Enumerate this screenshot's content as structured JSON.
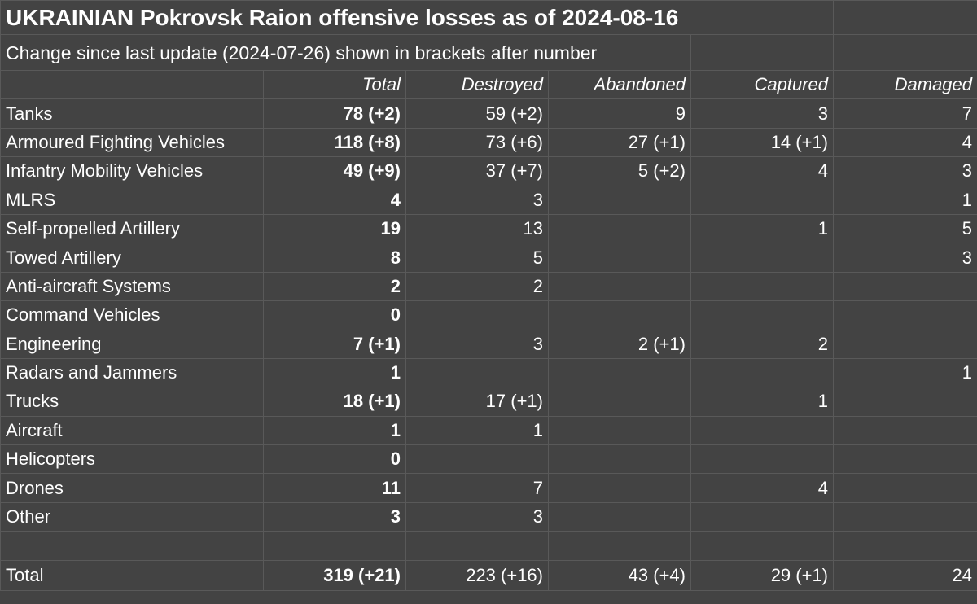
{
  "title": "UKRAINIAN Pokrovsk Raion offensive losses as of 2024-08-16",
  "subtitle": "Change since last update (2024-07-26) shown in brackets after number",
  "columns": [
    "Total",
    "Destroyed",
    "Abandoned",
    "Captured",
    "Damaged"
  ],
  "rows": [
    {
      "label": "Tanks",
      "total": "78 (+2)",
      "destroyed": "59 (+2)",
      "abandoned": "9",
      "captured": "3",
      "damaged": "7"
    },
    {
      "label": "Armoured Fighting Vehicles",
      "total": "118 (+8)",
      "destroyed": "73 (+6)",
      "abandoned": "27 (+1)",
      "captured": "14 (+1)",
      "damaged": "4"
    },
    {
      "label": "Infantry Mobility Vehicles",
      "total": "49 (+9)",
      "destroyed": "37 (+7)",
      "abandoned": "5 (+2)",
      "captured": "4",
      "damaged": "3"
    },
    {
      "label": "MLRS",
      "total": "4",
      "destroyed": "3",
      "abandoned": "",
      "captured": "",
      "damaged": "1"
    },
    {
      "label": "Self-propelled Artillery",
      "total": "19",
      "destroyed": "13",
      "abandoned": "",
      "captured": "1",
      "damaged": "5"
    },
    {
      "label": "Towed Artillery",
      "total": "8",
      "destroyed": "5",
      "abandoned": "",
      "captured": "",
      "damaged": "3"
    },
    {
      "label": "Anti-aircraft Systems",
      "total": "2",
      "destroyed": "2",
      "abandoned": "",
      "captured": "",
      "damaged": ""
    },
    {
      "label": "Command Vehicles",
      "total": "0",
      "destroyed": "",
      "abandoned": "",
      "captured": "",
      "damaged": ""
    },
    {
      "label": "Engineering",
      "total": "7 (+1)",
      "destroyed": "3",
      "abandoned": "2 (+1)",
      "captured": "2",
      "damaged": ""
    },
    {
      "label": "Radars and Jammers",
      "total": "1",
      "destroyed": "",
      "abandoned": "",
      "captured": "",
      "damaged": "1"
    },
    {
      "label": "Trucks",
      "total": "18 (+1)",
      "destroyed": "17 (+1)",
      "abandoned": "",
      "captured": "1",
      "damaged": ""
    },
    {
      "label": "Aircraft",
      "total": "1",
      "destroyed": "1",
      "abandoned": "",
      "captured": "",
      "damaged": ""
    },
    {
      "label": "Helicopters",
      "total": "0",
      "destroyed": "",
      "abandoned": "",
      "captured": "",
      "damaged": ""
    },
    {
      "label": "Drones",
      "total": "11",
      "destroyed": "7",
      "abandoned": "",
      "captured": "4",
      "damaged": ""
    },
    {
      "label": "Other",
      "total": "3",
      "destroyed": "3",
      "abandoned": "",
      "captured": "",
      "damaged": ""
    }
  ],
  "totals": {
    "label": "Total",
    "total": "319 (+21)",
    "destroyed": "223 (+16)",
    "abandoned": "43 (+4)",
    "captured": "29 (+1)",
    "damaged": "24"
  }
}
